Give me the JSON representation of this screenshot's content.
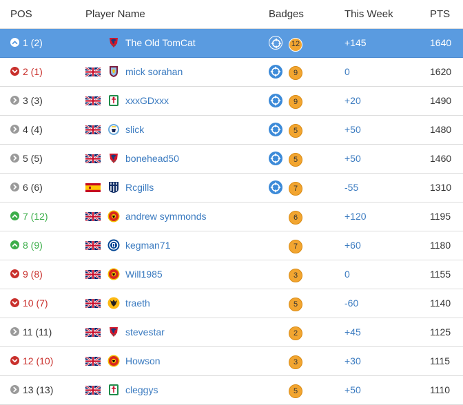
{
  "header": {
    "pos": "POS",
    "player_name": "Player Name",
    "badges": "Badges",
    "this_week": "This Week",
    "pts": "PTS"
  },
  "colors": {
    "selected_row": "#5a9be0",
    "link": "#3b7bc0",
    "up": "#3cae4a",
    "down": "#c9302c",
    "weekly_badge": "#3c8ad8",
    "count_badge": "#f2a530"
  },
  "rows": [
    {
      "pos": "1 (2)",
      "trend": "up",
      "flag": "",
      "club": "cardiff-crest-icon",
      "name": "The Old TomCat",
      "weekly_badge": true,
      "badge_count": "12",
      "this_week": "+145",
      "pts": "1640",
      "selected": true
    },
    {
      "pos": "2 (1)",
      "trend": "down",
      "flag": "uk-flag-icon",
      "club": "aston-villa-crest-icon",
      "name": "mick sorahan",
      "weekly_badge": true,
      "badge_count": "9",
      "this_week": "0",
      "pts": "1620",
      "selected": false
    },
    {
      "pos": "3 (3)",
      "trend": "same",
      "flag": "uk-flag-icon",
      "club": "liverpool-crest-icon",
      "name": "xxxGDxxx",
      "weekly_badge": true,
      "badge_count": "9",
      "this_week": "+20",
      "pts": "1490",
      "selected": false
    },
    {
      "pos": "4 (4)",
      "trend": "same",
      "flag": "uk-flag-icon",
      "club": "man-city-crest-icon",
      "name": "slick",
      "weekly_badge": true,
      "badge_count": "5",
      "this_week": "+50",
      "pts": "1480",
      "selected": false
    },
    {
      "pos": "5 (5)",
      "trend": "same",
      "flag": "uk-flag-icon",
      "club": "cardiff-crest-icon",
      "name": "bonehead50",
      "weekly_badge": true,
      "badge_count": "5",
      "this_week": "+50",
      "pts": "1460",
      "selected": false
    },
    {
      "pos": "6 (6)",
      "trend": "same",
      "flag": "spain-flag-icon",
      "club": "west-brom-crest-icon",
      "name": "Rcgills",
      "weekly_badge": true,
      "badge_count": "7",
      "this_week": "-55",
      "pts": "1310",
      "selected": false
    },
    {
      "pos": "7 (12)",
      "trend": "up",
      "flag": "uk-flag-icon",
      "club": "man-united-crest-icon",
      "name": "andrew symmonds",
      "weekly_badge": false,
      "badge_count": "6",
      "this_week": "+120",
      "pts": "1195",
      "selected": false
    },
    {
      "pos": "8 (9)",
      "trend": "up",
      "flag": "uk-flag-icon",
      "club": "chelsea-crest-icon",
      "name": "kegman71",
      "weekly_badge": false,
      "badge_count": "7",
      "this_week": "+60",
      "pts": "1180",
      "selected": false
    },
    {
      "pos": "9 (8)",
      "trend": "down",
      "flag": "uk-flag-icon",
      "club": "man-united-crest-icon",
      "name": "Will1985",
      "weekly_badge": false,
      "badge_count": "3",
      "this_week": "0",
      "pts": "1155",
      "selected": false
    },
    {
      "pos": "10 (7)",
      "trend": "down",
      "flag": "uk-flag-icon",
      "club": "wolves-crest-icon",
      "name": "traeth",
      "weekly_badge": false,
      "badge_count": "5",
      "this_week": "-60",
      "pts": "1140",
      "selected": false
    },
    {
      "pos": "11 (11)",
      "trend": "same",
      "flag": "uk-flag-icon",
      "club": "cardiff-crest-icon",
      "name": "stevestar",
      "weekly_badge": false,
      "badge_count": "2",
      "this_week": "+45",
      "pts": "1125",
      "selected": false
    },
    {
      "pos": "12 (10)",
      "trend": "down",
      "flag": "uk-flag-icon",
      "club": "man-united-crest-icon",
      "name": "Howson",
      "weekly_badge": false,
      "badge_count": "3",
      "this_week": "+30",
      "pts": "1115",
      "selected": false
    },
    {
      "pos": "13 (13)",
      "trend": "same",
      "flag": "uk-flag-icon",
      "club": "liverpool-crest-icon",
      "name": "cleggys",
      "weekly_badge": false,
      "badge_count": "5",
      "this_week": "+50",
      "pts": "1110",
      "selected": false
    }
  ]
}
